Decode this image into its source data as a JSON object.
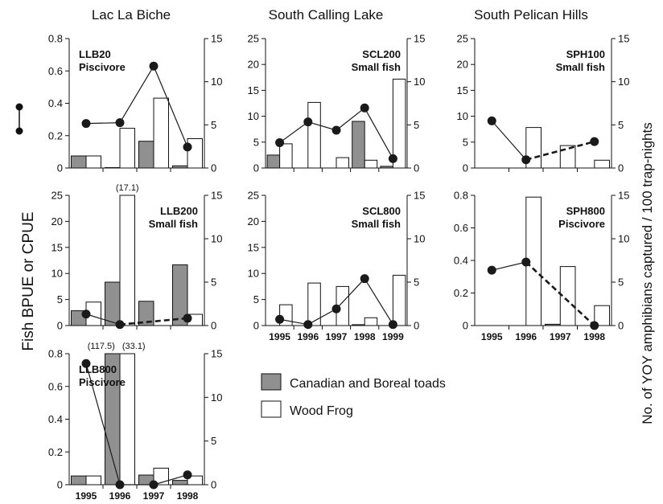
{
  "figure": {
    "left_axis_title": "Fish BPUE or CPUE",
    "right_axis_title": "No. of YOY amphibians captured / 100 trap-nights",
    "column_titles": [
      "Lac La Biche",
      "South Calling Lake",
      "South Pelican Hills"
    ],
    "legend": [
      {
        "label": "Canadian and Boreal toads",
        "color": "#909090"
      },
      {
        "label": "Wood Frog",
        "color": "#ffffff"
      }
    ],
    "colors": {
      "gray_bar": "#909090",
      "white_bar": "#ffffff",
      "line": "#1a1a1a"
    }
  },
  "chart_data": [
    {
      "id": "llb20",
      "type": "bar+line",
      "column": "Lac La Biche",
      "panel": "LLB20",
      "diet": "Piscivore",
      "categories": [
        "1995",
        "1996",
        "1997",
        "1998"
      ],
      "left_ylim": [
        0,
        0.8
      ],
      "left_ticks": [
        "0",
        "0.2",
        "0.4",
        "0.6",
        "0.8"
      ],
      "right_ylim": [
        0,
        15
      ],
      "right_ticks": [
        "0",
        "5",
        "10",
        "15"
      ],
      "toads": [
        1.4,
        0.05,
        3.1,
        0.25
      ],
      "wood_frog": [
        1.4,
        4.6,
        8.1,
        3.4
      ],
      "fish_line": [
        0.275,
        0.28,
        0.63,
        0.13
      ],
      "dashed_from_index": null,
      "annotations": [],
      "show_x_labels": false
    },
    {
      "id": "scl200",
      "type": "bar+line",
      "column": "South Calling Lake",
      "panel": "SCL200",
      "diet": "Small fish",
      "categories": [
        "1995",
        "1996",
        "1997",
        "1998",
        "1999"
      ],
      "left_ylim": [
        0,
        25
      ],
      "left_ticks": [
        "0",
        "5",
        "10",
        "15",
        "20",
        "25"
      ],
      "right_ylim": [
        0,
        15
      ],
      "right_ticks": [
        "0",
        "5",
        "10",
        "15"
      ],
      "toads": [
        1.5,
        0,
        0,
        5.4,
        0.2
      ],
      "wood_frog": [
        2.8,
        7.6,
        1.2,
        0.9,
        10.3
      ],
      "fish_line": [
        4.9,
        8.9,
        7.3,
        11.6,
        1.8
      ],
      "dashed_from_index": null,
      "annotations": [],
      "show_x_labels": false
    },
    {
      "id": "sph100",
      "type": "bar+line",
      "column": "South Pelican Hills",
      "panel": "SPH100",
      "diet": "Small fish",
      "categories": [
        "1995",
        "1996",
        "1997",
        "1998"
      ],
      "left_ylim": [
        0,
        25
      ],
      "left_ticks": [
        "0",
        "5",
        "10",
        "15",
        "20",
        "25"
      ],
      "right_ylim": [
        0,
        15
      ],
      "right_ticks": [
        "0",
        "5",
        "10",
        "15"
      ],
      "toads": [
        0,
        0,
        0,
        0
      ],
      "wood_frog": [
        0,
        4.7,
        2.6,
        0.9
      ],
      "fish_line": [
        9.1,
        1.6,
        null,
        5.1
      ],
      "dashed_from_index": 1,
      "annotations": [],
      "show_x_labels": false
    },
    {
      "id": "llb200",
      "type": "bar+line",
      "column": "Lac La Biche",
      "panel": "LLB200",
      "diet": "Small fish",
      "categories": [
        "1995",
        "1996",
        "1997",
        "1998"
      ],
      "left_ylim": [
        0,
        25
      ],
      "left_ticks": [
        "0",
        "5",
        "10",
        "15",
        "20",
        "25"
      ],
      "right_ylim": [
        0,
        15
      ],
      "right_ticks": [
        "0",
        "5",
        "10",
        "15"
      ],
      "toads": [
        1.7,
        5.0,
        2.8,
        7.0
      ],
      "wood_frog": [
        2.7,
        17.1,
        0,
        1.3
      ],
      "fish_line": [
        2.2,
        0.2,
        null,
        1.4
      ],
      "dashed_from_index": 1,
      "annotations": [
        {
          "category_index": 1,
          "text": "(17.1)"
        }
      ],
      "show_x_labels": false
    },
    {
      "id": "scl800",
      "type": "bar+line",
      "column": "South Calling Lake",
      "panel": "SCL800",
      "diet": "Small fish",
      "categories": [
        "1995",
        "1996",
        "1997",
        "1998",
        "1999"
      ],
      "left_ylim": [
        0,
        25
      ],
      "left_ticks": [
        "0",
        "5",
        "10",
        "15",
        "20",
        "25"
      ],
      "right_ylim": [
        0,
        15
      ],
      "right_ticks": [
        "0",
        "5",
        "10",
        "15"
      ],
      "toads": [
        0,
        0,
        0,
        0.1,
        0
      ],
      "wood_frog": [
        2.4,
        4.9,
        4.5,
        0.9,
        5.8
      ],
      "fish_line": [
        1.2,
        0.2,
        3.2,
        9.0,
        0.2
      ],
      "dashed_from_index": null,
      "annotations": [],
      "show_x_labels": true
    },
    {
      "id": "sph800",
      "type": "bar+line",
      "column": "South Pelican Hills",
      "panel": "SPH800",
      "diet": "Piscivore",
      "categories": [
        "1995",
        "1996",
        "1997",
        "1998"
      ],
      "left_ylim": [
        0,
        0.8
      ],
      "left_ticks": [
        "0",
        "0.2",
        "0.4",
        "0.6",
        "0.8"
      ],
      "right_ylim": [
        0,
        15
      ],
      "right_ticks": [
        "0",
        "5",
        "10",
        "15"
      ],
      "toads": [
        0,
        0,
        0.15,
        0
      ],
      "wood_frog": [
        0,
        14.8,
        6.8,
        2.3
      ],
      "fish_line": [
        0.34,
        0.39,
        null,
        0.0
      ],
      "dashed_from_index": 1,
      "annotations": [],
      "show_x_labels": true
    },
    {
      "id": "llb800",
      "type": "bar+line",
      "column": "Lac La Biche",
      "panel": "LLB800",
      "diet": "Piscivore",
      "categories": [
        "1995",
        "1996",
        "1997",
        "1998"
      ],
      "left_ylim": [
        0,
        0.8
      ],
      "left_ticks": [
        "0",
        "0.2",
        "0.4",
        "0.6",
        "0.8"
      ],
      "right_ylim": [
        0,
        15
      ],
      "right_ticks": [
        "0",
        "5",
        "10",
        "15"
      ],
      "toads": [
        1.0,
        117.5,
        1.1,
        0.5
      ],
      "wood_frog": [
        1.0,
        33.1,
        1.9,
        1.0
      ],
      "fish_line": [
        0.74,
        0.0,
        0.0,
        0.06
      ],
      "dashed_from_index": null,
      "annotations": [
        {
          "category_index": 1,
          "text": "(117.5)",
          "bar": "toads"
        },
        {
          "category_index": 1,
          "text": "(33.1)",
          "bar": "wood_frog"
        }
      ],
      "show_x_labels": true
    }
  ]
}
